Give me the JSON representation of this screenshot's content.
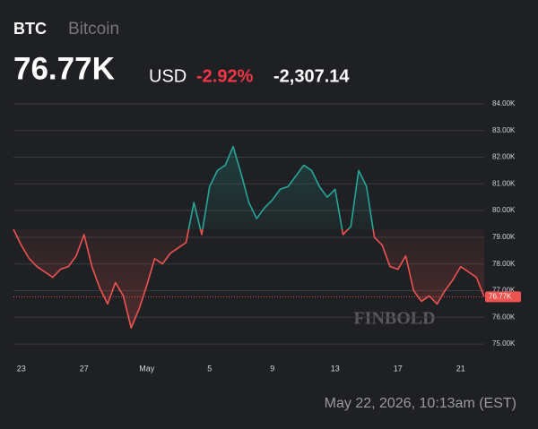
{
  "header": {
    "symbol": "BTC",
    "name": "Bitcoin",
    "price": "76.77K",
    "currency": "USD",
    "change_pct": "-2.92%",
    "change": "-2,307.14"
  },
  "footer": {
    "timestamp": "May 22, 2026, 10:13am (EST)"
  },
  "chart_data": {
    "type": "line",
    "watermark": "FINBOLD",
    "last_price_label": "76.77K",
    "color_up": "#26a69a",
    "color_down": "#ef5350",
    "categories": [
      null,
      "23",
      null,
      null,
      null,
      null,
      null,
      null,
      null,
      "27",
      null,
      null,
      null,
      null,
      null,
      null,
      null,
      "May",
      null,
      null,
      null,
      null,
      null,
      null,
      null,
      "5",
      null,
      null,
      null,
      null,
      null,
      null,
      null,
      "9",
      null,
      null,
      null,
      null,
      null,
      null,
      null,
      "13",
      null,
      null,
      null,
      null,
      null,
      null,
      null,
      "17",
      null,
      null,
      null,
      null,
      null,
      null,
      null,
      "21",
      null,
      null,
      null
    ],
    "values": [
      79.3,
      78.7,
      78.2,
      77.9,
      77.7,
      77.5,
      77.8,
      77.9,
      78.3,
      79.1,
      77.9,
      77.1,
      76.5,
      77.3,
      76.8,
      75.6,
      76.3,
      77.2,
      78.2,
      78.0,
      78.4,
      78.6,
      78.8,
      80.3,
      79.1,
      80.9,
      81.5,
      81.7,
      82.4,
      81.4,
      80.3,
      79.7,
      80.1,
      80.4,
      80.8,
      80.9,
      81.3,
      81.7,
      81.5,
      80.9,
      80.5,
      80.8,
      79.1,
      79.4,
      81.5,
      80.9,
      79.0,
      78.7,
      77.9,
      77.8,
      78.3,
      77.0,
      76.6,
      76.8,
      76.5,
      77.0,
      77.4,
      77.9,
      77.7,
      77.5,
      76.77
    ],
    "ylim": [
      74.5,
      84.5
    ],
    "yticks": [
      {
        "value": 75,
        "label": "75.00K"
      },
      {
        "value": 76,
        "label": "76.00K"
      },
      {
        "value": 77,
        "label": "77.00K"
      },
      {
        "value": 78,
        "label": "78.00K"
      },
      {
        "value": 79,
        "label": "79.00K"
      },
      {
        "value": 80,
        "label": "80.00K"
      },
      {
        "value": 81,
        "label": "81.00K"
      },
      {
        "value": 82,
        "label": "82.00K"
      },
      {
        "value": 83,
        "label": "83.00K"
      },
      {
        "value": 84,
        "label": "84.00K"
      }
    ],
    "grid": true
  }
}
